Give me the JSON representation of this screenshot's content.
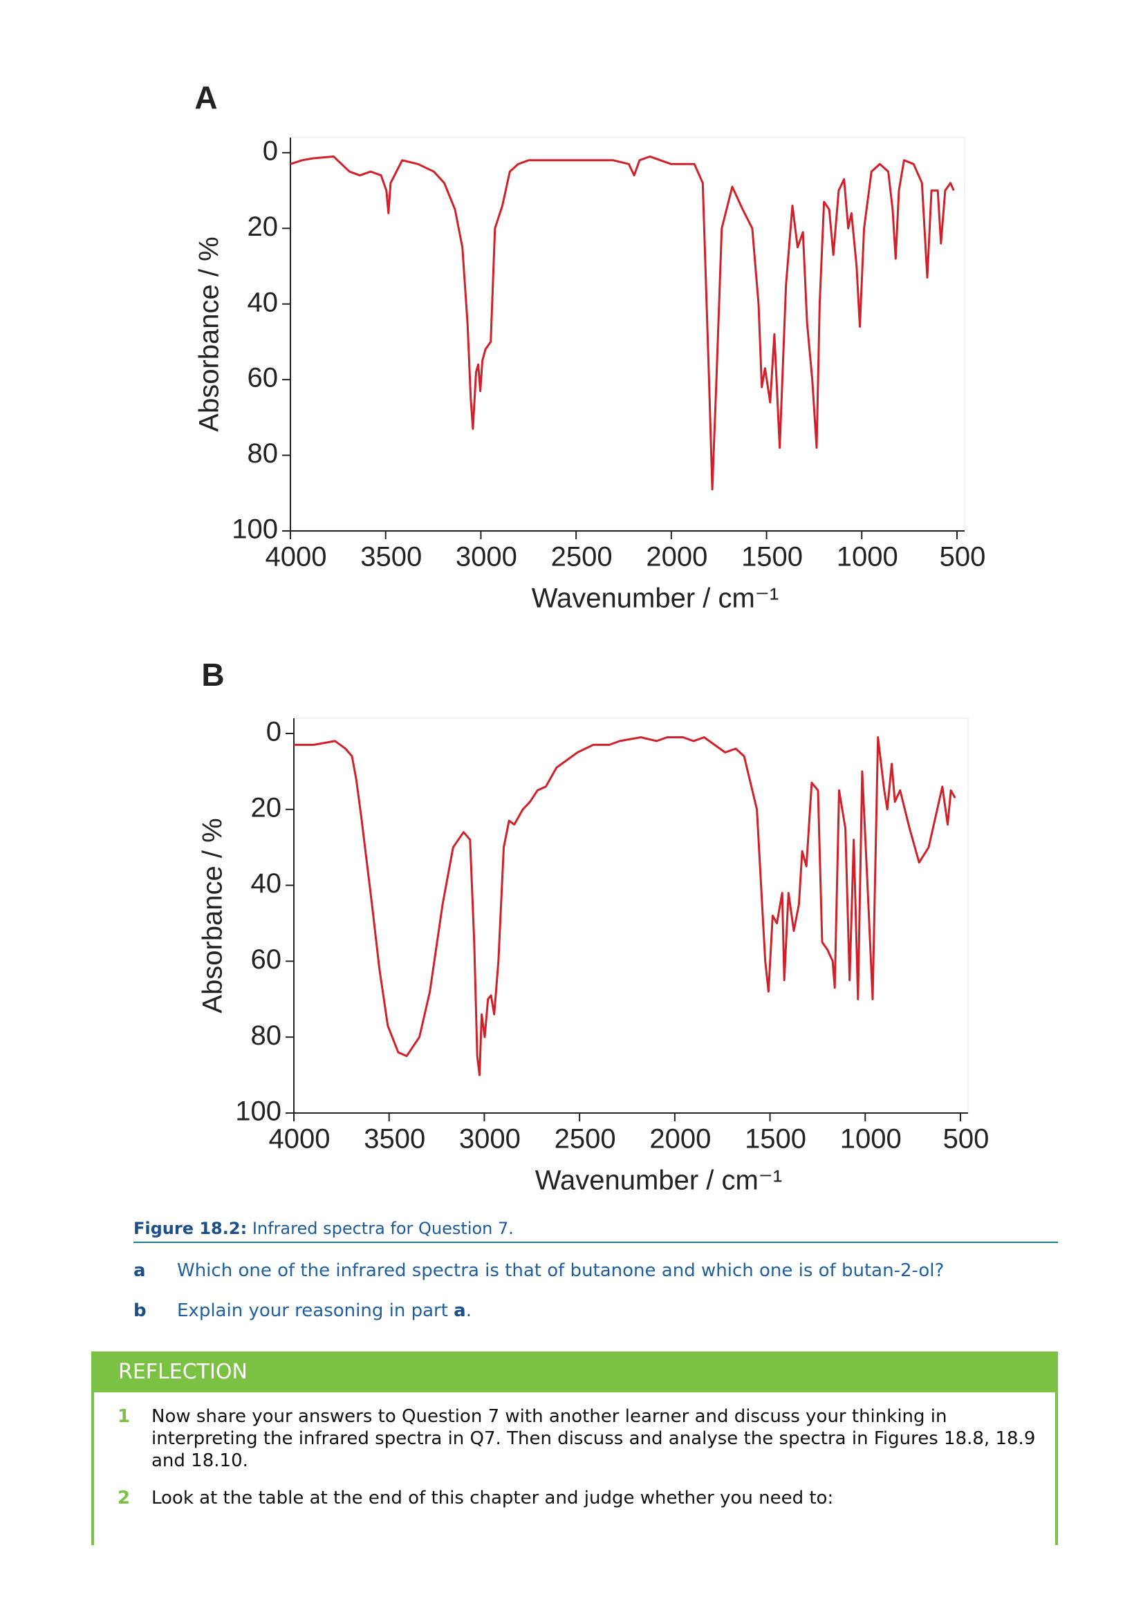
{
  "chart_data": [
    {
      "type": "line",
      "title": "A",
      "y_label": "Absorbance / %",
      "x_label": "Wavenumber / cm⁻¹",
      "color": "#d0202a",
      "xlim": [
        4000,
        460
      ],
      "ylim": [
        100,
        -4
      ],
      "xticks": [
        4000,
        3500,
        3000,
        2500,
        2000,
        1500,
        1000,
        500
      ],
      "yticks": [
        0,
        20,
        40,
        60,
        80,
        100
      ],
      "x": [
        4000,
        3939,
        3884,
        3773,
        3690,
        3635,
        3579,
        3524,
        3496,
        3485,
        3474,
        3413,
        3330,
        3247,
        3192,
        3136,
        3097,
        3070,
        3053,
        3042,
        3025,
        3014,
        3003,
        2992,
        2976,
        2948,
        2926,
        2887,
        2848,
        2804,
        2749,
        2666,
        2555,
        2472,
        2389,
        2306,
        2223,
        2195,
        2167,
        2112,
        2001,
        1918,
        1879,
        1835,
        1802,
        1785,
        1763,
        1735,
        1680,
        1625,
        1575,
        1542,
        1525,
        1508,
        1481,
        1459,
        1431,
        1398,
        1364,
        1337,
        1309,
        1287,
        1260,
        1237,
        1221,
        1198,
        1171,
        1149,
        1121,
        1093,
        1071,
        1054,
        1027,
        1010,
        988,
        949,
        905,
        861,
        838,
        822,
        805,
        778,
        728,
        684,
        656,
        634,
        601,
        584,
        562,
        534,
        517
      ],
      "values": [
        3,
        2,
        1.5,
        1,
        5,
        6,
        5,
        6,
        10,
        16,
        8,
        2,
        3,
        5,
        8,
        15,
        25,
        45,
        65,
        73,
        58,
        56,
        63,
        55,
        52,
        50,
        20,
        14,
        5,
        3,
        2,
        2,
        2,
        2,
        2,
        2,
        3,
        6,
        2,
        1,
        3,
        3,
        3,
        8,
        60,
        89,
        60,
        20,
        9,
        15,
        20,
        40,
        62,
        57,
        66,
        48,
        78,
        35,
        14,
        25,
        21,
        45,
        60,
        78,
        40,
        13,
        15,
        27,
        10,
        7,
        20,
        16,
        30,
        46,
        20,
        5,
        3,
        5,
        15,
        28,
        10,
        2,
        3,
        8,
        33,
        10,
        10,
        24,
        10,
        8,
        10
      ]
    },
    {
      "type": "line",
      "title": "B",
      "y_label": "Absorbance / %",
      "x_label": "Wavenumber / cm⁻¹",
      "color": "#d0202a",
      "xlim": [
        4000,
        460
      ],
      "ylim": [
        100,
        -4
      ],
      "xticks": [
        4000,
        3500,
        3000,
        2500,
        2000,
        1500,
        1000,
        500
      ],
      "yticks": [
        0,
        20,
        40,
        60,
        80,
        100
      ],
      "x": [
        4000,
        3895,
        3784,
        3729,
        3695,
        3673,
        3646,
        3590,
        3551,
        3507,
        3452,
        3408,
        3341,
        3286,
        3219,
        3164,
        3109,
        3075,
        3053,
        3037,
        3025,
        3014,
        2998,
        2981,
        2965,
        2948,
        2926,
        2898,
        2870,
        2843,
        2798,
        2760,
        2721,
        2677,
        2621,
        2566,
        2511,
        2428,
        2344,
        2289,
        2178,
        2095,
        2040,
        1957,
        1901,
        1846,
        1791,
        1735,
        1680,
        1636,
        1569,
        1525,
        1508,
        1486,
        1464,
        1436,
        1425,
        1403,
        1375,
        1348,
        1331,
        1309,
        1281,
        1248,
        1226,
        1198,
        1171,
        1160,
        1137,
        1104,
        1082,
        1060,
        1038,
        1016,
        988,
        961,
        933,
        900,
        884,
        861,
        844,
        817,
        767,
        717,
        667,
        622,
        595,
        567,
        550,
        528
      ],
      "values": [
        3,
        3,
        2,
        4,
        6,
        12,
        22,
        45,
        62,
        77,
        84,
        85,
        80,
        68,
        45,
        30,
        26,
        28,
        55,
        85,
        90,
        74,
        80,
        70,
        69,
        74,
        60,
        30,
        23,
        24,
        20,
        18,
        15,
        14,
        9,
        7,
        5,
        3,
        3,
        2,
        1,
        2,
        1,
        1,
        2,
        1,
        3,
        5,
        4,
        6,
        20,
        60,
        68,
        48,
        50,
        42,
        65,
        42,
        52,
        45,
        31,
        35,
        13,
        15,
        55,
        57,
        60,
        67,
        15,
        25,
        65,
        28,
        70,
        10,
        40,
        70,
        1,
        15,
        20,
        8,
        18,
        15,
        25,
        34,
        30,
        20,
        14,
        24,
        15,
        17
      ]
    }
  ],
  "figure": {
    "label": "Figure 18.2:",
    "text": "Infrared spectra for Question 7."
  },
  "questions": [
    {
      "letter": "a",
      "parts": [
        "Which one of the infrared spectra is that of butanone and which one is of butan-2-ol?"
      ]
    },
    {
      "letter": "b",
      "parts": [
        "Explain your reasoning in part ",
        "a",
        "."
      ]
    }
  ],
  "reflection": {
    "header": "REFLECTION",
    "items": [
      {
        "number": "1",
        "text": "Now share your answers to Question 7 with another learner and discuss your thinking in interpreting the infrared spectra in Q7. Then discuss and analyse the spectra in Figures 18.8, 18.9 and 18.10."
      },
      {
        "number": "2",
        "text": "Look at the table at the end of this chapter and judge whether you need to:"
      }
    ]
  }
}
